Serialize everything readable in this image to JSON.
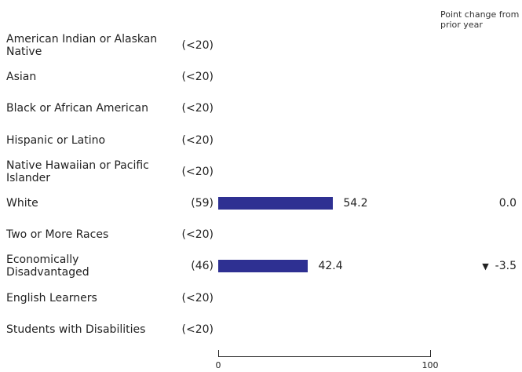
{
  "header": {
    "point_change_label": "Point change from prior year"
  },
  "chart_data": {
    "type": "bar",
    "orientation": "horizontal",
    "xlim": [
      0,
      100
    ],
    "x_ticks": [
      "0",
      "100"
    ],
    "rows": [
      {
        "label": "American Indian or Alaskan Native",
        "n": "(<20)",
        "value": null,
        "change": null
      },
      {
        "label": "Asian",
        "n": "(<20)",
        "value": null,
        "change": null
      },
      {
        "label": "Black or African American",
        "n": "(<20)",
        "value": null,
        "change": null
      },
      {
        "label": "Hispanic or Latino",
        "n": "(<20)",
        "value": null,
        "change": null
      },
      {
        "label": "Native Hawaiian or Pacific Islander",
        "n": "(<20)",
        "value": null,
        "change": null
      },
      {
        "label": "White",
        "n": "(59)",
        "value": 54.2,
        "value_label": "54.2",
        "change": "0.0",
        "change_direction": "none"
      },
      {
        "label": "Two or More Races",
        "n": "(<20)",
        "value": null,
        "change": null
      },
      {
        "label": "Economically Disadvantaged",
        "n": "(46)",
        "value": 42.4,
        "value_label": "42.4",
        "change": "-3.5",
        "change_direction": "down"
      },
      {
        "label": "English Learners",
        "n": "(<20)",
        "value": null,
        "change": null
      },
      {
        "label": "Students with Disabilities",
        "n": "(<20)",
        "value": null,
        "change": null
      }
    ],
    "bar_color": "#2e3092"
  }
}
